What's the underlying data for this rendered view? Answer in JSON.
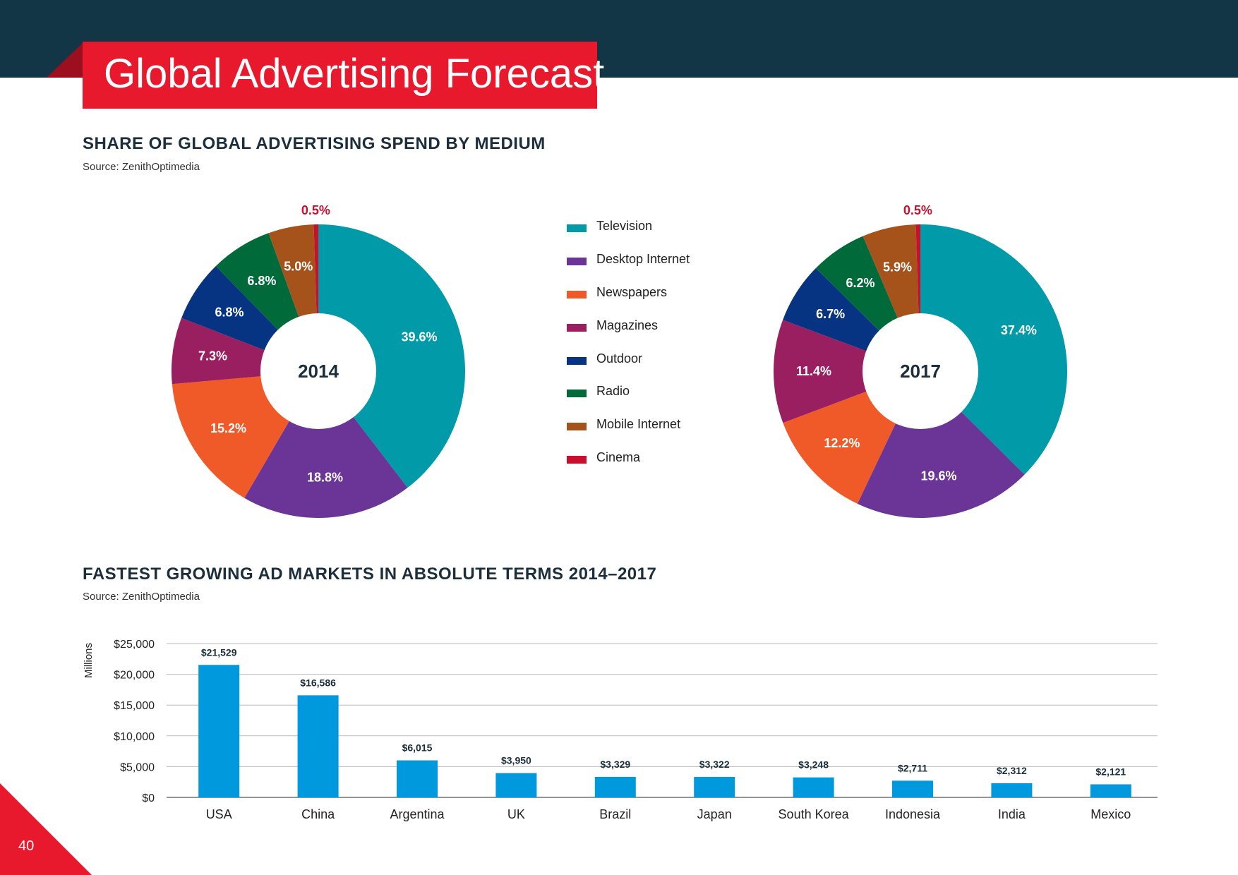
{
  "header": {
    "title": "Global Advertising Forecast"
  },
  "colors": {
    "band": "#133647",
    "accent": "#e8192c",
    "Television": "#009aa8",
    "Desktop Internet": "#6a3596",
    "Newspapers": "#f05a28",
    "Magazines": "#9a1f60",
    "Outdoor": "#063482",
    "Radio": "#006a3a",
    "Mobile Internet": "#a6521b",
    "Cinema": "#c8102e",
    "bar": "#0099dd"
  },
  "section1": {
    "title": "SHARE OF GLOBAL ADVERTISING SPEND BY MEDIUM",
    "source": "Source: ZenithOptimedia"
  },
  "section2": {
    "title": "FASTEST GROWING AD MARKETS IN ABSOLUTE TERMS 2014–2017",
    "source": "Source: ZenithOptimedia"
  },
  "legend": [
    "Television",
    "Desktop Internet",
    "Newspapers",
    "Magazines",
    "Outdoor",
    "Radio",
    "Mobile Internet",
    "Cinema"
  ],
  "page_number": "40",
  "chart_data": [
    {
      "type": "pie",
      "center_label": "2014",
      "categories": [
        "Television",
        "Desktop Internet",
        "Newspapers",
        "Magazines",
        "Outdoor",
        "Radio",
        "Mobile Internet",
        "Cinema"
      ],
      "values": [
        39.6,
        18.8,
        15.2,
        7.3,
        6.8,
        6.8,
        5.0,
        0.5
      ],
      "labels": [
        "39.6%",
        "18.8%",
        "15.2%",
        "7.3%",
        "6.8%",
        "6.8%",
        "5.0%",
        "0.5%"
      ]
    },
    {
      "type": "pie",
      "center_label": "2017",
      "categories": [
        "Television",
        "Desktop Internet",
        "Newspapers",
        "Magazines",
        "Outdoor",
        "Radio",
        "Mobile Internet",
        "Cinema"
      ],
      "values": [
        37.4,
        19.6,
        12.2,
        11.4,
        6.7,
        6.2,
        5.9,
        0.5
      ],
      "labels": [
        "37.4%",
        "19.6%",
        "12.2%",
        "11.4%",
        "6.7%",
        "6.2%",
        "5.9%",
        "0.5%"
      ]
    },
    {
      "type": "bar",
      "categories": [
        "USA",
        "China",
        "Argentina",
        "UK",
        "Brazil",
        "Japan",
        "South Korea",
        "Indonesia",
        "India",
        "Mexico"
      ],
      "values": [
        21529,
        16586,
        6015,
        3950,
        3329,
        3322,
        3248,
        2711,
        2312,
        2121
      ],
      "value_labels": [
        "$21,529",
        "$16,586",
        "$6,015",
        "$3,950",
        "$3,329",
        "$3,322",
        "$3,248",
        "$2,711",
        "$2,312",
        "$2,121"
      ],
      "ylabel": "Millions",
      "ylim": [
        0,
        25000
      ],
      "yticks": [
        0,
        5000,
        10000,
        15000,
        20000,
        25000
      ],
      "ytick_labels": [
        "$0",
        "$5,000",
        "$10,000",
        "$15,000",
        "$20,000",
        "$25,000"
      ],
      "grid": true
    }
  ]
}
